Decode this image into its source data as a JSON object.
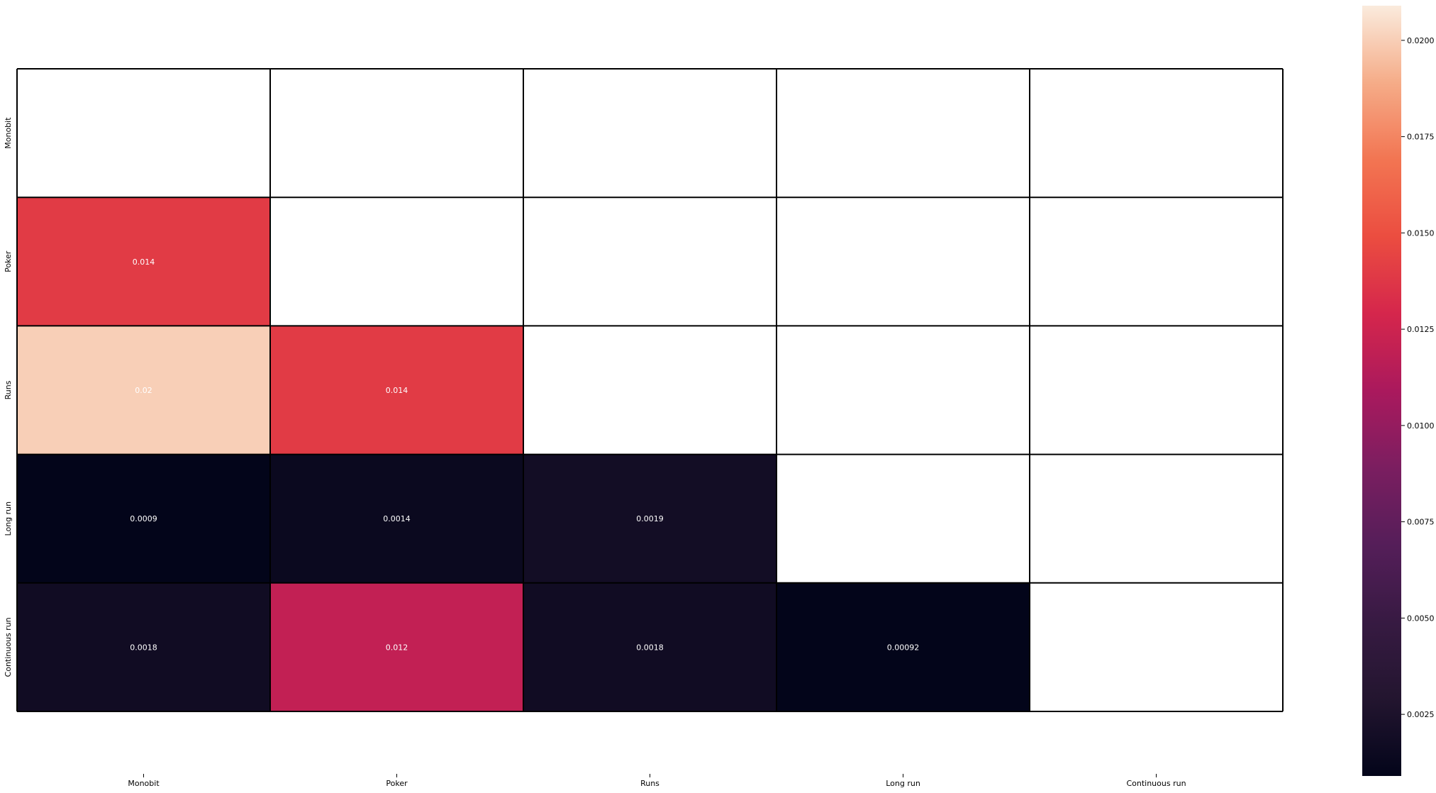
{
  "chart_data": {
    "type": "heatmap",
    "title": "",
    "xlabel": "",
    "ylabel": "",
    "x_categories": [
      "Monobit",
      "Poker",
      "Runs",
      "Long run",
      "Continuous run"
    ],
    "y_categories": [
      "Monobit",
      "Poker",
      "Runs",
      "Long run",
      "Continuous run"
    ],
    "cells": [
      {
        "row": 1,
        "col": 0,
        "value": 0.014,
        "label": "0.014"
      },
      {
        "row": 2,
        "col": 0,
        "value": 0.02,
        "label": "0.02"
      },
      {
        "row": 2,
        "col": 1,
        "value": 0.014,
        "label": "0.014"
      },
      {
        "row": 3,
        "col": 0,
        "value": 0.0009,
        "label": "0.0009"
      },
      {
        "row": 3,
        "col": 1,
        "value": 0.0014,
        "label": "0.0014"
      },
      {
        "row": 3,
        "col": 2,
        "value": 0.0019,
        "label": "0.0019"
      },
      {
        "row": 4,
        "col": 0,
        "value": 0.0018,
        "label": "0.0018"
      },
      {
        "row": 4,
        "col": 1,
        "value": 0.012,
        "label": "0.012"
      },
      {
        "row": 4,
        "col": 2,
        "value": 0.0018,
        "label": "0.0018"
      },
      {
        "row": 4,
        "col": 3,
        "value": 0.00092,
        "label": "0.00092"
      }
    ],
    "masked": "upper-triangle-and-diagonal",
    "colormap": "rocket",
    "colorbar": {
      "min": 0.0009,
      "max": 0.0209,
      "ticks": [
        0.0025,
        0.005,
        0.0075,
        0.01,
        0.0125,
        0.015,
        0.0175,
        0.02
      ],
      "tick_labels": [
        "0.0025",
        "0.0050",
        "0.0075",
        "0.0100",
        "0.0125",
        "0.0150",
        "0.0175",
        "0.0200"
      ],
      "placement": "right"
    },
    "grid": true,
    "cell_border_color": "#000000",
    "annotation_color": "#ffffff"
  }
}
